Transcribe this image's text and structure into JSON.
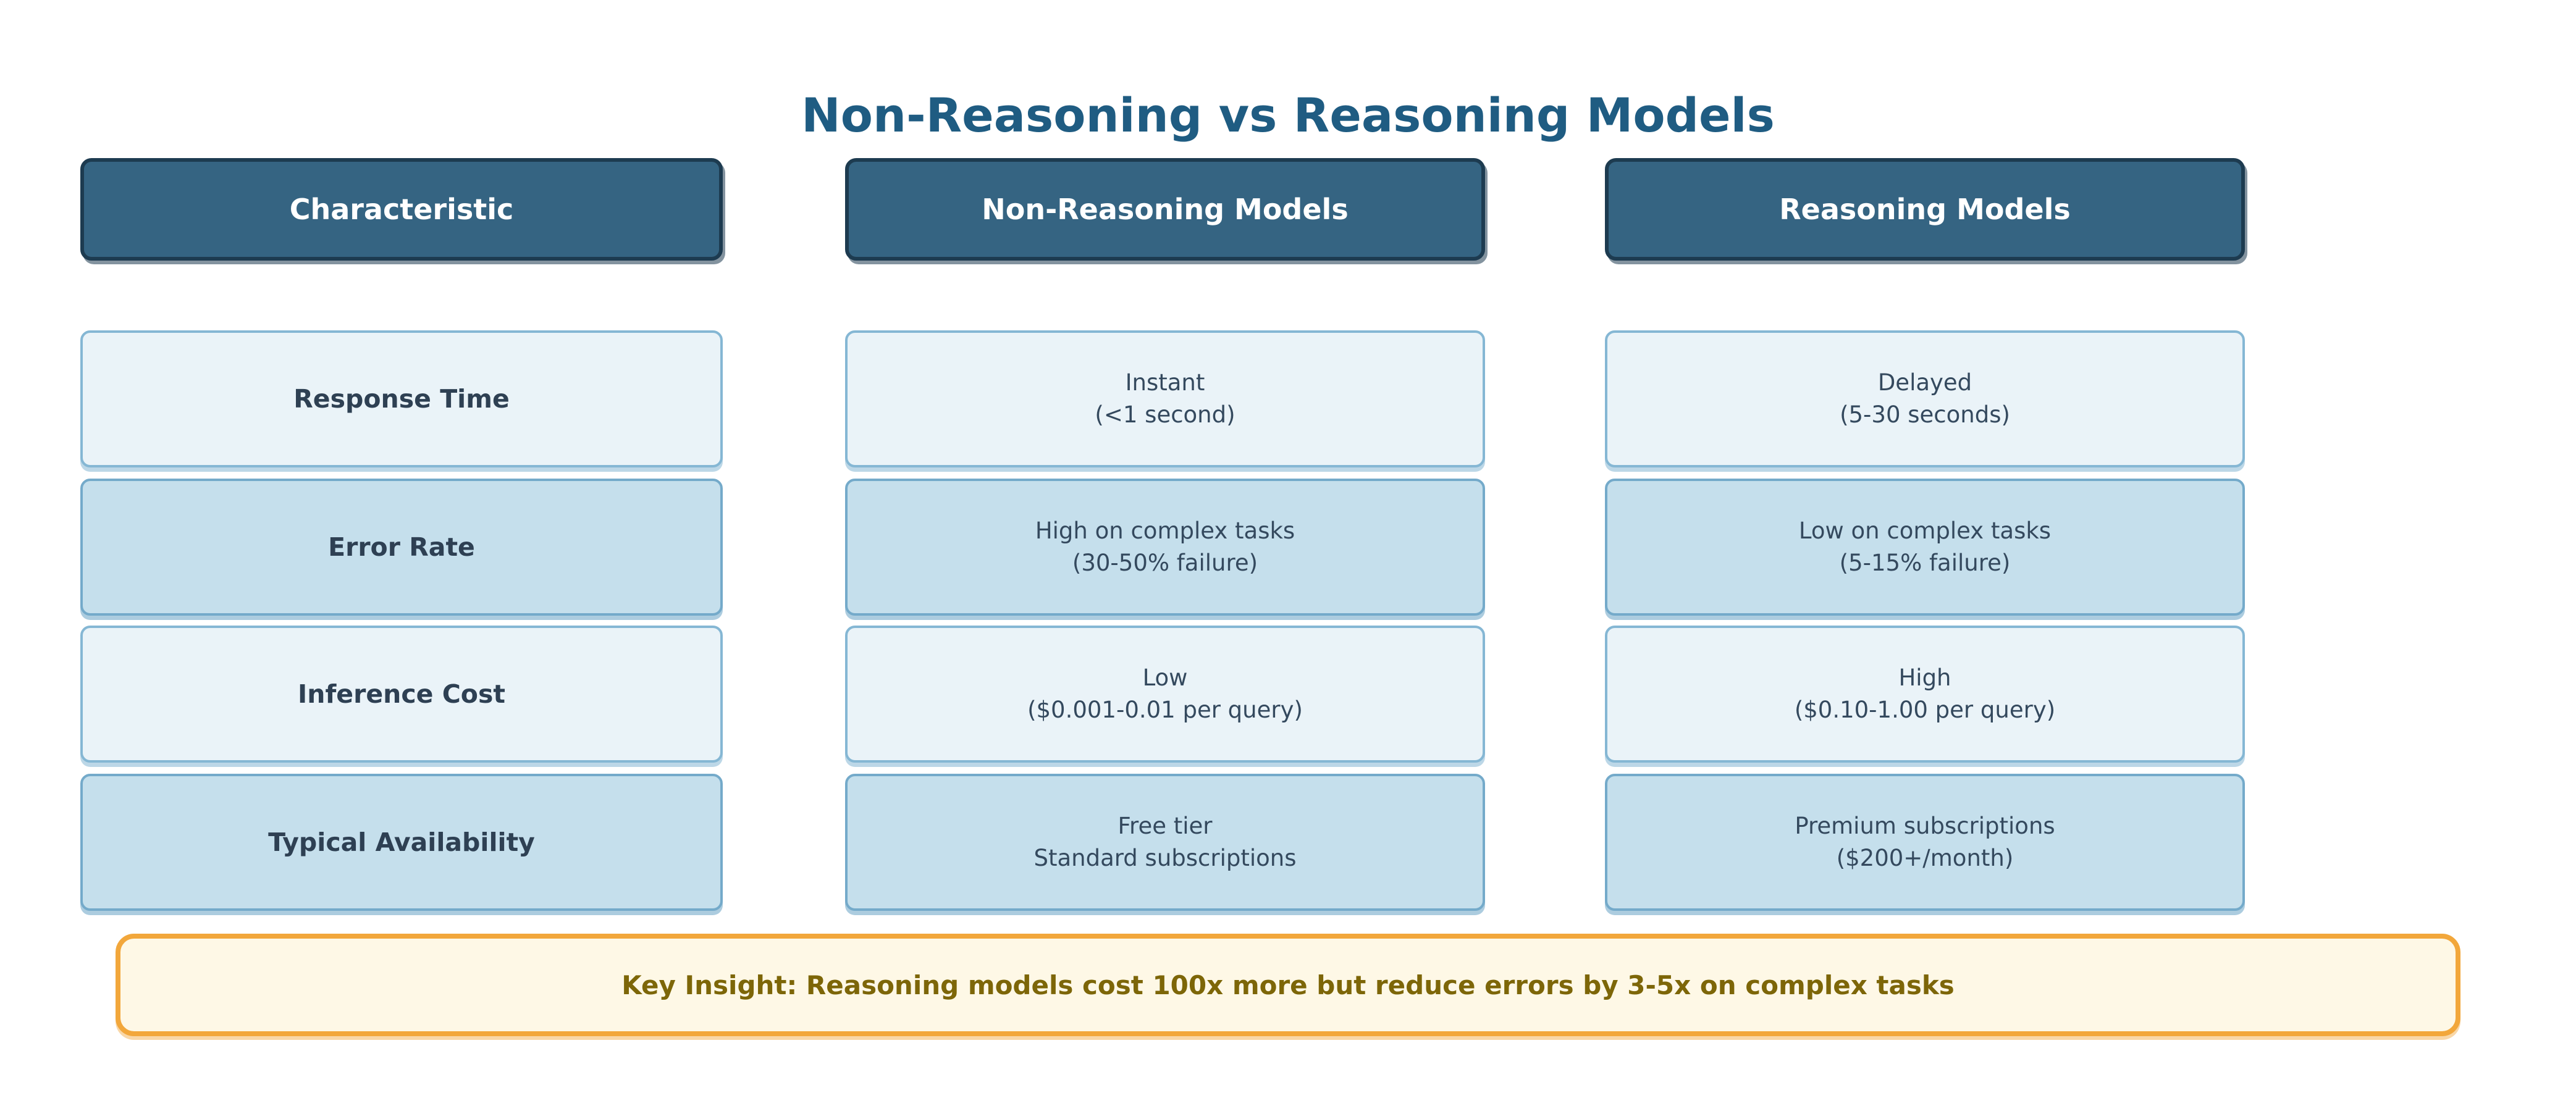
{
  "title": "Non-Reasoning vs Reasoning Models",
  "headers": {
    "characteristic": "Characteristic",
    "non_reasoning": "Non-Reasoning Models",
    "reasoning": "Reasoning Models"
  },
  "rows": [
    {
      "label": "Response Time",
      "non_reasoning": {
        "line1": "Instant",
        "line2": "(<1 second)"
      },
      "reasoning": {
        "line1": "Delayed",
        "line2": "(5-30 seconds)"
      }
    },
    {
      "label": "Error Rate",
      "non_reasoning": {
        "line1": "High on complex tasks",
        "line2": "(30-50% failure)"
      },
      "reasoning": {
        "line1": "Low on complex tasks",
        "line2": "(5-15% failure)"
      }
    },
    {
      "label": "Inference Cost",
      "non_reasoning": {
        "line1": "Low",
        "line2": "($0.001-0.01 per query)"
      },
      "reasoning": {
        "line1": "High",
        "line2": "($0.10-1.00 per query)"
      }
    },
    {
      "label": "Typical Availability",
      "non_reasoning": {
        "line1": "Free tier",
        "line2": "Standard subscriptions"
      },
      "reasoning": {
        "line1": "Premium subscriptions",
        "line2": "($200+/month)"
      }
    }
  ],
  "key_insight": "Key Insight: Reasoning models cost 100x more but reduce errors by 3-5x on complex tasks",
  "colors": {
    "title_text": "#1F5C82",
    "header_fill": "#356482",
    "header_border": "#1D3B50",
    "header_text": "#FFFFFF",
    "row_light_fill": "#EAF3F8",
    "row_dark_fill": "#C5DFEC",
    "row_border": "#7BAECD",
    "cell_text": "#2E4053",
    "insight_fill": "#FEF8E6",
    "insight_border": "#F2A73B",
    "insight_text": "#7D6608"
  }
}
